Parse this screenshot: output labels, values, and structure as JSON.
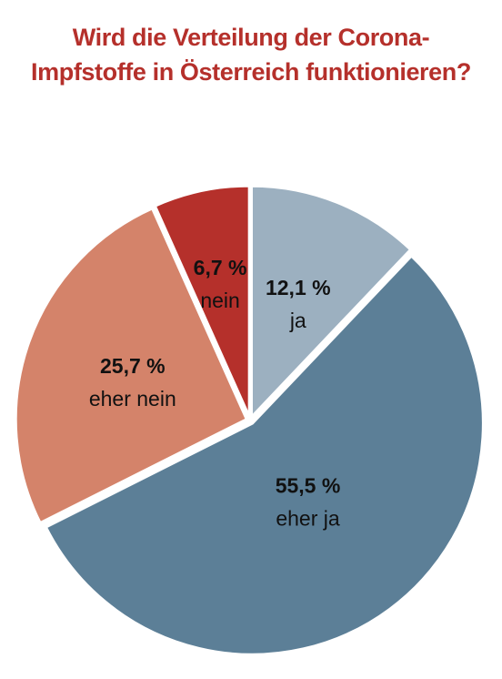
{
  "chart_data": {
    "type": "pie",
    "title_lines": [
      "Wird die Verteilung der Corona-",
      "Impfstoffe in Österreich funktionieren?"
    ],
    "slices": [
      {
        "label": "ja",
        "value": 12.1,
        "value_label": "12,1 %",
        "color": "#9cb0c0"
      },
      {
        "label": "eher ja",
        "value": 55.5,
        "value_label": "55,5 %",
        "color": "#5c7f97"
      },
      {
        "label": "eher nein",
        "value": 25.7,
        "value_label": "25,7 %",
        "color": "#d4836a"
      },
      {
        "label": "nein",
        "value": 6.7,
        "value_label": "6,7 %",
        "color": "#b5302b"
      }
    ],
    "title_color": "#b5302b",
    "start": "12 o'clock",
    "direction": "clockwise"
  }
}
